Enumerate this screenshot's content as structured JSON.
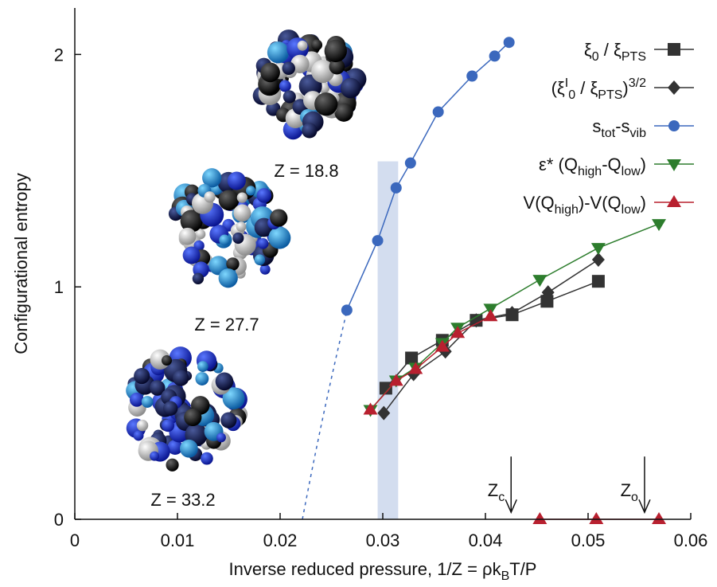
{
  "chart_data": {
    "type": "line",
    "xlabel": [
      [
        "Inverse reduced pressure, 1/Z = ρk",
        ""
      ],
      [
        "B",
        "sub"
      ],
      [
        "T/P",
        ""
      ]
    ],
    "ylabel": [
      [
        "Configurational entropy",
        ""
      ]
    ],
    "xlim": [
      0,
      0.06
    ],
    "xticks": [
      0,
      0.01,
      0.02,
      0.03,
      0.04,
      0.05,
      0.06
    ],
    "ylim": [
      0,
      2.2
    ],
    "yticks": [
      0,
      1,
      2
    ],
    "legend": "upper right",
    "series": [
      {
        "name": [
          [
            "ξ",
            ""
          ],
          [
            "0",
            "sub"
          ],
          [
            " / ξ",
            ""
          ],
          [
            "PTS",
            "sub"
          ]
        ],
        "color": "#333333",
        "marker": "square",
        "x": [
          0.0303,
          0.0328,
          0.0358,
          0.0391,
          0.0426,
          0.046,
          0.051
        ],
        "values": [
          0.564,
          0.694,
          0.77,
          0.856,
          0.88,
          0.938,
          1.024
        ]
      },
      {
        "name": [
          [
            "(ξ",
            ""
          ],
          [
            "I",
            "sup"
          ],
          [
            "0",
            "sub"
          ],
          [
            " / ξ",
            ""
          ],
          [
            "PTS",
            "sub"
          ],
          [
            ")",
            ""
          ],
          [
            "3/2",
            "sup"
          ]
        ],
        "color": "#333333",
        "marker": "diamond",
        "x": [
          0.0301,
          0.033,
          0.0361,
          0.0391,
          0.0426,
          0.0461,
          0.051
        ],
        "values": [
          0.457,
          0.625,
          0.722,
          0.856,
          0.887,
          0.976,
          1.117
        ]
      },
      {
        "name": [
          [
            "s",
            ""
          ],
          [
            "tot",
            "sub"
          ],
          [
            "-s",
            ""
          ],
          [
            "vib",
            "sub"
          ]
        ],
        "color": "#3b68bd",
        "marker": "circle",
        "x": [
          0.0265,
          0.0295,
          0.0313,
          0.0327,
          0.0354,
          0.0387,
          0.0409,
          0.0423
        ],
        "values": [
          0.9,
          1.199,
          1.426,
          1.533,
          1.753,
          1.907,
          1.993,
          2.052
        ]
      },
      {
        "name": [
          [
            "ε* (Q",
            ""
          ],
          [
            "high",
            "sub"
          ],
          [
            "-Q",
            ""
          ],
          [
            "low",
            "sub"
          ],
          [
            ")",
            ""
          ]
        ],
        "color": "#2d7d2d",
        "marker": "tri-down",
        "x": [
          0.0288,
          0.0313,
          0.0332,
          0.0358,
          0.0373,
          0.0405,
          0.0453,
          0.051,
          0.0569
        ],
        "values": [
          0.471,
          0.598,
          0.653,
          0.759,
          0.825,
          0.907,
          1.031,
          1.168,
          1.271
        ]
      },
      {
        "name": [
          [
            "V(Q",
            ""
          ],
          [
            "high",
            "sub"
          ],
          [
            ")-V(Q",
            ""
          ],
          [
            "low",
            "sub"
          ],
          [
            ")",
            ""
          ]
        ],
        "color": "#b8202f",
        "marker": "tri-up",
        "x": [
          0.0288,
          0.0313,
          0.0332,
          0.0358,
          0.0373,
          0.0405,
          null,
          0.0453,
          0.0508,
          0.0569
        ],
        "values": [
          0.471,
          0.595,
          0.646,
          0.742,
          0.801,
          0.873,
          null,
          0,
          0,
          0
        ]
      }
    ],
    "band": {
      "x": [
        0.0295,
        0.0315
      ],
      "y": [
        0,
        1.54
      ],
      "color": "#d3ddef"
    },
    "arrows": [
      {
        "label": [
          [
            "Z",
            ""
          ],
          [
            "c",
            "sub"
          ]
        ],
        "x": 0.0425,
        "y": [
          0.27,
          0.03
        ]
      },
      {
        "label": [
          [
            "Z",
            ""
          ],
          [
            "o",
            "sub"
          ]
        ],
        "x": 0.0555,
        "y": [
          0.27,
          0.03
        ]
      }
    ],
    "clusters": [
      "Z = 18.8",
      "Z = 27.7",
      "Z = 33.2"
    ]
  }
}
